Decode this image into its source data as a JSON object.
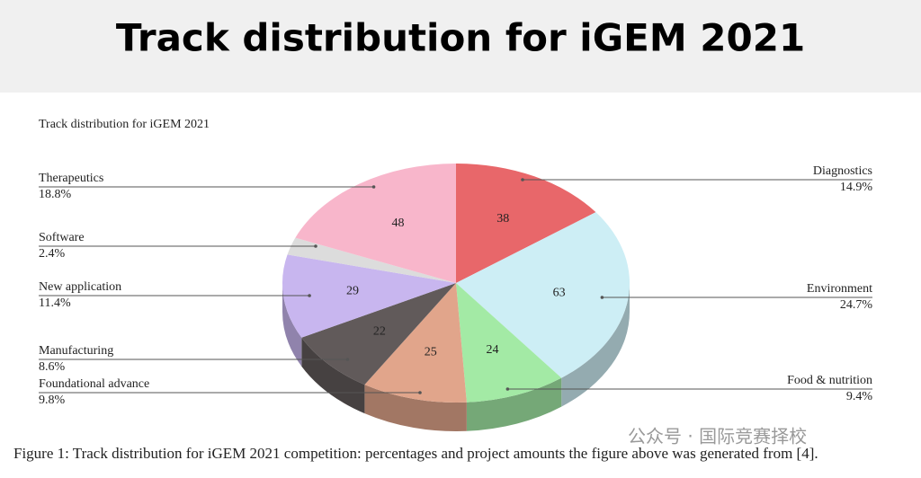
{
  "header": {
    "title": "Track distribution for iGEM 2021"
  },
  "chart_data": {
    "type": "pie",
    "title": "Track distribution for iGEM 2021",
    "categories": [
      "Diagnostics",
      "Environment",
      "Food & nutrition",
      "Foundational advance",
      "Manufacturing",
      "New application",
      "Software",
      "Therapeutics"
    ],
    "values": [
      38,
      63,
      24,
      25,
      22,
      29,
      6,
      48
    ],
    "percentages": [
      14.9,
      24.7,
      9.4,
      9.8,
      8.6,
      11.4,
      2.4,
      18.8
    ],
    "percentage_labels": [
      "14.9%",
      "24.7%",
      "9.4%",
      "9.8%",
      "8.6%",
      "11.4%",
      "2.4%",
      "18.8%"
    ],
    "colors": [
      "#e8676a",
      "#cdeef5",
      "#a3eaa5",
      "#e1a58b",
      "#615a5a",
      "#c8b6ef",
      "#dcdcdc",
      "#f8b6cb"
    ]
  },
  "caption": "Figure 1: Track distribution for iGEM 2021 competition: percentages and project amounts the figure above was generated from [4].",
  "watermark": "公众号 · 国际竞赛择校"
}
